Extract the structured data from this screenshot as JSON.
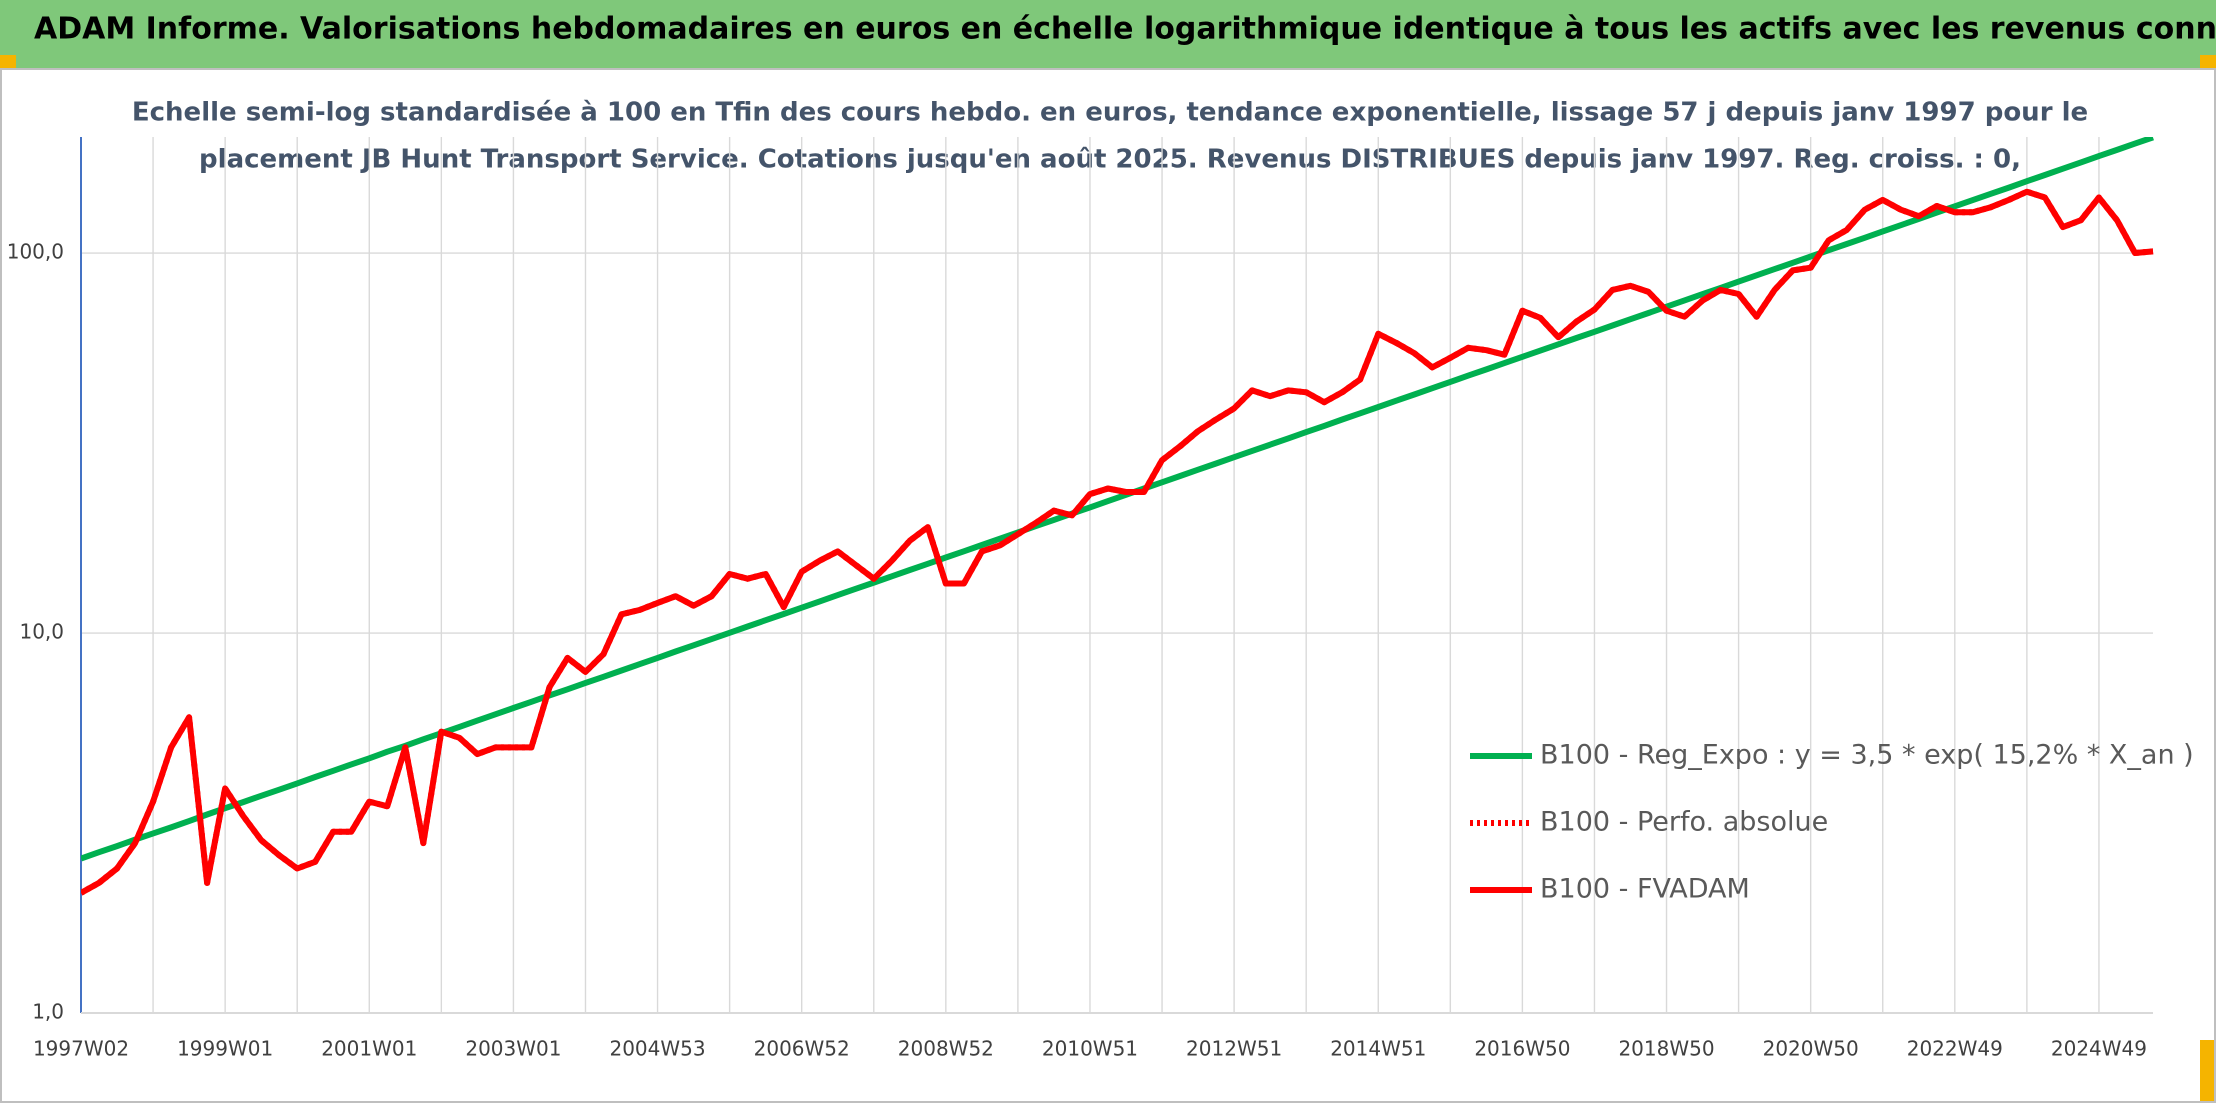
{
  "header": {
    "title": "ADAM Informe. Valorisations hebdomadaires en euros en échelle logarithmique identique à tous les actifs avec les revenus connus distribués"
  },
  "chart_data": {
    "type": "line",
    "subtitle": [
      "Echelle semi-log standardisée à 100 en Tfin des cours hebdo. en euros, tendance exponentielle, lissage 57 j depuis janv 1997 pour le",
      "placement JB Hunt Transport Service. Cotations jusqu'en août 2025. Revenus DISTRIBUES depuis janv 1997. Reg. croiss. : 0,"
    ],
    "log_scale": true,
    "grid": true,
    "legend": "right",
    "ylim": [
      1,
      202
    ],
    "yticks": [
      {
        "value": 1,
        "label": "1,0"
      },
      {
        "value": 10,
        "label": "10,0"
      },
      {
        "value": 100,
        "label": "100,0"
      }
    ],
    "categories": [
      "1997W02",
      null,
      null,
      null,
      null,
      null,
      null,
      null,
      "1999W01",
      null,
      null,
      null,
      null,
      null,
      null,
      null,
      "2001W01",
      null,
      null,
      null,
      null,
      null,
      null,
      null,
      "2003W01",
      null,
      null,
      null,
      null,
      null,
      null,
      null,
      "2004W53",
      null,
      null,
      null,
      null,
      null,
      null,
      null,
      "2006W52",
      null,
      null,
      null,
      null,
      null,
      null,
      null,
      "2008W52",
      null,
      null,
      null,
      null,
      null,
      null,
      null,
      "2010W51",
      null,
      null,
      null,
      null,
      null,
      null,
      null,
      "2012W51",
      null,
      null,
      null,
      null,
      null,
      null,
      null,
      "2014W51",
      null,
      null,
      null,
      null,
      null,
      null,
      null,
      "2016W50",
      null,
      null,
      null,
      null,
      null,
      null,
      null,
      "2018W50",
      null,
      null,
      null,
      null,
      null,
      null,
      null,
      "2020W50",
      null,
      null,
      null,
      null,
      null,
      null,
      null,
      "2022W49",
      null,
      null,
      null,
      null,
      null,
      null,
      null,
      "2024W49",
      null,
      null,
      null
    ],
    "series": [
      {
        "name": "B100 - Reg_Expo : y = 3,5 * exp( 15,2% *  X_an )",
        "color": "#00b050",
        "line_style": "solid",
        "values": [
          2.55,
          2.65,
          2.75,
          2.86,
          2.97,
          3.08,
          3.2,
          3.33,
          3.46,
          3.59,
          3.73,
          3.87,
          4.02,
          4.18,
          4.34,
          4.51,
          4.68,
          4.87,
          5.05,
          5.25,
          5.45,
          5.66,
          5.88,
          6.11,
          6.35,
          6.59,
          6.85,
          7.11,
          7.39,
          7.67,
          7.97,
          8.28,
          8.6,
          8.94,
          9.28,
          9.64,
          10.01,
          10.4,
          10.81,
          11.22,
          11.66,
          12.11,
          12.58,
          13.07,
          13.57,
          14.1,
          14.65,
          15.21,
          15.8,
          16.41,
          17.05,
          17.71,
          18.4,
          19.11,
          19.85,
          20.62,
          21.41,
          22.24,
          23.11,
          24.0,
          24.93,
          25.9,
          26.9,
          27.94,
          29.02,
          30.15,
          31.31,
          32.53,
          33.79,
          35.09,
          36.46,
          37.87,
          39.34,
          40.86,
          42.44,
          44.09,
          45.79,
          47.57,
          49.41,
          51.33,
          53.31,
          55.37,
          57.52,
          59.74,
          62.06,
          64.46,
          66.96,
          69.55,
          72.25,
          75.04,
          77.95,
          80.97,
          84.1,
          87.36,
          90.74,
          94.26,
          97.91,
          101.7,
          105.6,
          109.7,
          114.0,
          118.4,
          123.0,
          127.8,
          132.7,
          137.8,
          143.2,
          148.7,
          154.5,
          160.5,
          166.7,
          173.2,
          179.9,
          186.8,
          194.1,
          201.5
        ]
      },
      {
        "name": "B100 - Perfo. absolue",
        "color": "#ff0000",
        "line_style": "dotted",
        "values": [
          2.07,
          2.2,
          2.4,
          2.8,
          3.6,
          5.0,
          6.0,
          2.2,
          3.9,
          3.3,
          2.85,
          2.6,
          2.4,
          2.5,
          3.0,
          3.0,
          3.6,
          3.5,
          5.0,
          2.8,
          5.5,
          5.3,
          4.8,
          5.0,
          5.0,
          5.0,
          7.2,
          8.6,
          7.9,
          8.8,
          11.2,
          11.5,
          12.0,
          12.5,
          11.8,
          12.5,
          14.3,
          13.9,
          14.3,
          11.7,
          14.5,
          15.5,
          16.4,
          15.1,
          13.9,
          15.5,
          17.5,
          19.0,
          13.5,
          13.5,
          16.4,
          17.0,
          18.2,
          19.5,
          21.0,
          20.4,
          23.2,
          24.0,
          23.5,
          23.5,
          28.5,
          31.0,
          34.0,
          36.5,
          39.0,
          43.5,
          42.0,
          43.5,
          43.0,
          40.5,
          43.0,
          46.5,
          61.3,
          58.0,
          54.5,
          50.0,
          53.0,
          56.3,
          55.5,
          54.0,
          70.5,
          67.5,
          60.0,
          66.0,
          71.0,
          80.0,
          82.0,
          79.0,
          70.5,
          68.0,
          75.0,
          80.0,
          78.0,
          68.0,
          80.0,
          90.0,
          91.5,
          108,
          115,
          130,
          138,
          130,
          125,
          133,
          128,
          128,
          132,
          138,
          145,
          140,
          117,
          122,
          140,
          122,
          100,
          101
        ]
      },
      {
        "name": "B100 - FVADAM",
        "color": "#ff0000",
        "line_style": "solid",
        "values": [
          2.07,
          2.2,
          2.4,
          2.8,
          3.6,
          5.0,
          6.0,
          2.2,
          3.9,
          3.3,
          2.85,
          2.6,
          2.4,
          2.5,
          3.0,
          3.0,
          3.6,
          3.5,
          5.0,
          2.8,
          5.5,
          5.3,
          4.8,
          5.0,
          5.0,
          5.0,
          7.2,
          8.6,
          7.9,
          8.8,
          11.2,
          11.5,
          12.0,
          12.5,
          11.8,
          12.5,
          14.3,
          13.9,
          14.3,
          11.7,
          14.5,
          15.5,
          16.4,
          15.1,
          13.9,
          15.5,
          17.5,
          19.0,
          13.5,
          13.5,
          16.4,
          17.0,
          18.2,
          19.5,
          21.0,
          20.4,
          23.2,
          24.0,
          23.5,
          23.5,
          28.5,
          31.0,
          34.0,
          36.5,
          39.0,
          43.5,
          42.0,
          43.5,
          43.0,
          40.5,
          43.0,
          46.5,
          61.3,
          58.0,
          54.5,
          50.0,
          53.0,
          56.3,
          55.5,
          54.0,
          70.5,
          67.5,
          60.0,
          66.0,
          71.0,
          80.0,
          82.0,
          79.0,
          70.5,
          68.0,
          75.0,
          80.0,
          78.0,
          68.0,
          80.0,
          90.0,
          91.5,
          108,
          115,
          130,
          138,
          130,
          125,
          133,
          128,
          128,
          132,
          138,
          145,
          140,
          117,
          122,
          140,
          122,
          100,
          101
        ]
      }
    ]
  }
}
